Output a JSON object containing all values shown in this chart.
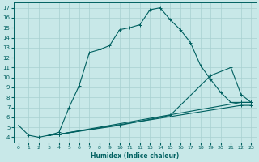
{
  "xlabel": "Humidex (Indice chaleur)",
  "ylabel": "",
  "bg_color": "#c8e8e8",
  "line_color": "#006060",
  "grid_color": "#a8d0d0",
  "xlim": [
    -0.5,
    23.5
  ],
  "ylim": [
    3.5,
    17.5
  ],
  "xticks": [
    0,
    1,
    2,
    3,
    4,
    5,
    6,
    7,
    8,
    9,
    10,
    11,
    12,
    13,
    14,
    15,
    16,
    17,
    18,
    19,
    20,
    21,
    22,
    23
  ],
  "yticks": [
    4,
    5,
    6,
    7,
    8,
    9,
    10,
    11,
    12,
    13,
    14,
    15,
    16,
    17
  ],
  "lines": [
    {
      "x": [
        0,
        1,
        2,
        3,
        4,
        5,
        6,
        7,
        8,
        9,
        10,
        11,
        12,
        13,
        14,
        15,
        16,
        17,
        18,
        19,
        20,
        21,
        22,
        23
      ],
      "y": [
        5.2,
        4.2,
        4.0,
        4.2,
        4.5,
        7.0,
        9.2,
        12.5,
        12.8,
        13.2,
        14.8,
        15.0,
        15.3,
        16.8,
        17.0,
        15.8,
        14.8,
        13.5,
        11.2,
        9.8,
        8.5,
        7.5,
        7.5,
        7.5
      ],
      "marker": true
    },
    {
      "x": [
        3,
        4,
        10,
        15,
        19,
        21,
        22,
        23
      ],
      "y": [
        4.2,
        4.3,
        5.2,
        6.2,
        10.2,
        11.0,
        8.3,
        7.5
      ],
      "marker": true
    },
    {
      "x": [
        3,
        4,
        22,
        23
      ],
      "y": [
        4.2,
        4.3,
        7.5,
        7.5
      ],
      "marker": true
    },
    {
      "x": [
        3,
        4,
        22,
        23
      ],
      "y": [
        4.2,
        4.3,
        7.2,
        7.2
      ],
      "marker": true
    }
  ]
}
